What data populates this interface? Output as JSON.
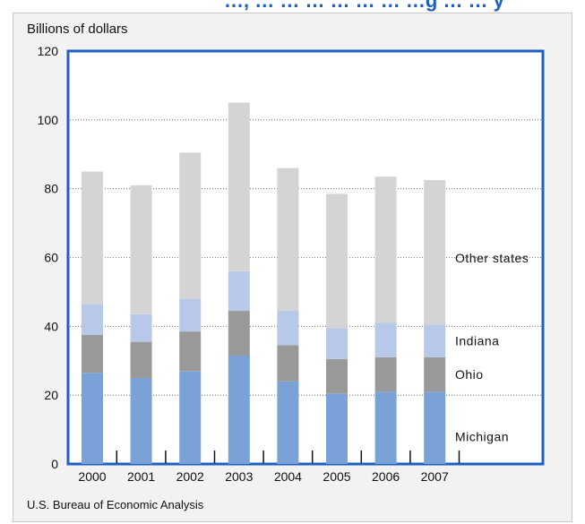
{
  "header": {
    "title_fragment": "…, … … … … … … …g … … y"
  },
  "chart_data": {
    "type": "bar",
    "stacked": true,
    "ylabel": "Billions of dollars",
    "xlabel": "",
    "ylim": [
      0,
      120
    ],
    "yticks": [
      0,
      20,
      40,
      60,
      80,
      100,
      120
    ],
    "categories": [
      "2000",
      "2001",
      "2002",
      "2003",
      "2004",
      "2005",
      "2006",
      "2007"
    ],
    "series": [
      {
        "name": "Michigan",
        "color": "#7aa2d6",
        "values": [
          26.5,
          25,
          27,
          31.5,
          24,
          20.5,
          21,
          21
        ]
      },
      {
        "name": "Ohio",
        "color": "#999999",
        "values": [
          11,
          10.5,
          11.5,
          13,
          10.5,
          10,
          10,
          10
        ]
      },
      {
        "name": "Indiana",
        "color": "#b7c8e8",
        "values": [
          9,
          8,
          9.5,
          11.5,
          10,
          9,
          10,
          9.5
        ]
      },
      {
        "name": "Other states",
        "color": "#d4d4d4",
        "values": [
          38.5,
          37.5,
          42.5,
          49,
          41.5,
          39,
          42.5,
          42
        ]
      }
    ],
    "grid": true,
    "legend": "right-inline",
    "source": "U.S. Bureau of Economic Analysis",
    "colors": {
      "frame": "#1f5fbf",
      "panel": "#f2f2f2",
      "plot_bg": "#ffffff"
    }
  }
}
